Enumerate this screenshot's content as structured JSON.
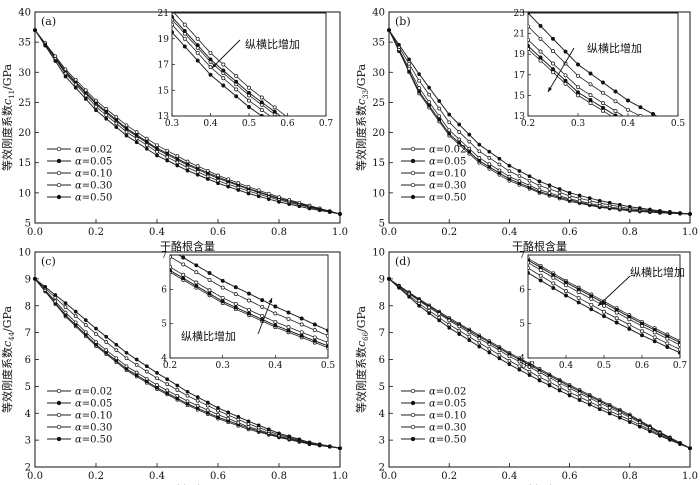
{
  "chart_data": [
    {
      "type": "line",
      "panel_label": "(a)",
      "xlabel": "干酪根含量",
      "ylabel": "等效刚度系数c11/GPa",
      "ylabel_main": "等效刚度系数",
      "ylabel_sym": "c",
      "ylabel_sub": "11",
      "ylabel_unit": "/GPa",
      "xlim": [
        0,
        1
      ],
      "ylim": [
        5,
        40
      ],
      "xticks": [
        "0.0",
        "0.2",
        "0.4",
        "0.6",
        "0.8",
        "1.0"
      ],
      "yticks": [
        "5",
        "10",
        "15",
        "20",
        "25",
        "30",
        "35",
        "40"
      ],
      "x": [
        0,
        0.1,
        0.2,
        0.3,
        0.4,
        0.5,
        0.6,
        0.7,
        0.8,
        0.9,
        1.0
      ],
      "series": [
        {
          "name": "0.02",
          "marker": "open",
          "values": [
            37,
            30.0,
            24.7,
            20.5,
            17.2,
            14.6,
            12.4,
            10.6,
            9.0,
            7.7,
            6.5
          ]
        },
        {
          "name": "0.05",
          "marker": "filled",
          "values": [
            37,
            30.2,
            24.9,
            20.7,
            17.4,
            14.8,
            12.6,
            10.7,
            9.1,
            7.8,
            6.5
          ]
        },
        {
          "name": "0.10",
          "marker": "open",
          "values": [
            37,
            30.5,
            25.3,
            21.2,
            17.9,
            15.2,
            12.9,
            11.0,
            9.3,
            7.9,
            6.5
          ]
        },
        {
          "name": "0.30",
          "marker": "open",
          "values": [
            37,
            29.8,
            24.3,
            20.1,
            16.8,
            14.2,
            12.0,
            10.3,
            8.8,
            7.6,
            6.5
          ]
        },
        {
          "name": "0.50",
          "marker": "filled",
          "values": [
            37,
            29.3,
            23.7,
            19.5,
            16.2,
            13.7,
            11.6,
            9.9,
            8.5,
            7.4,
            6.5
          ]
        }
      ],
      "legend_prefix": "α=",
      "inset": {
        "xlim": [
          0.3,
          0.7
        ],
        "ylim": [
          13,
          21
        ],
        "xticks": [
          "0.3",
          "0.4",
          "0.5",
          "0.6",
          "0.7"
        ],
        "yticks": [
          "13",
          "15",
          "17",
          "19",
          "21"
        ],
        "annotation": "纵横比增加"
      }
    },
    {
      "type": "line",
      "panel_label": "(b)",
      "xlabel": "干酪根含量",
      "ylabel": "等效刚度系数c33/GPa",
      "ylabel_main": "等效刚度系数",
      "ylabel_sym": "c",
      "ylabel_sub": "33",
      "ylabel_unit": "/GPa",
      "xlim": [
        0,
        1
      ],
      "ylim": [
        5,
        40
      ],
      "xticks": [
        "0.0",
        "0.2",
        "0.4",
        "0.6",
        "0.8",
        "1.0"
      ],
      "yticks": [
        "5",
        "10",
        "15",
        "20",
        "25",
        "30",
        "35",
        "40"
      ],
      "x": [
        0,
        0.1,
        0.2,
        0.3,
        0.4,
        0.5,
        0.6,
        0.7,
        0.8,
        0.9,
        1.0
      ],
      "series": [
        {
          "name": "0.02",
          "marker": "open",
          "values": [
            37,
            26.5,
            19.5,
            15.0,
            12.0,
            10.0,
            8.6,
            7.6,
            7.0,
            6.7,
            6.5
          ]
        },
        {
          "name": "0.05",
          "marker": "filled",
          "values": [
            37,
            26.8,
            19.8,
            15.3,
            12.3,
            10.2,
            8.8,
            7.7,
            7.1,
            6.7,
            6.5
          ]
        },
        {
          "name": "0.10",
          "marker": "open",
          "values": [
            37,
            27.4,
            20.4,
            15.8,
            12.7,
            10.5,
            9.0,
            7.9,
            7.2,
            6.8,
            6.5
          ]
        },
        {
          "name": "0.30",
          "marker": "open",
          "values": [
            37,
            28.6,
            21.7,
            16.9,
            13.6,
            11.2,
            9.5,
            8.3,
            7.4,
            6.9,
            6.5
          ]
        },
        {
          "name": "0.50",
          "marker": "filled",
          "values": [
            37,
            29.7,
            23.0,
            18.0,
            14.5,
            11.9,
            10.0,
            8.7,
            7.7,
            7.0,
            6.5
          ]
        }
      ],
      "legend_prefix": "α=",
      "inset": {
        "xlim": [
          0.2,
          0.5
        ],
        "ylim": [
          13,
          23
        ],
        "xticks": [
          "0.2",
          "0.3",
          "0.4",
          "0.5"
        ],
        "yticks": [
          "13",
          "15",
          "17",
          "19",
          "21",
          "23"
        ],
        "annotation": "纵横比增加"
      }
    },
    {
      "type": "line",
      "panel_label": "(c)",
      "xlabel": "干酪根含量",
      "ylabel": "等效刚度系数c44/GPa",
      "ylabel_main": "等效刚度系数",
      "ylabel_sym": "c",
      "ylabel_sub": "44",
      "ylabel_unit": "/GPa",
      "xlim": [
        0,
        1
      ],
      "ylim": [
        2,
        10
      ],
      "xticks": [
        "0.0",
        "0.2",
        "0.4",
        "0.6",
        "0.8",
        "1.0"
      ],
      "yticks": [
        "2",
        "3",
        "4",
        "5",
        "6",
        "7",
        "8",
        "9",
        "10"
      ],
      "x": [
        0,
        0.1,
        0.2,
        0.3,
        0.4,
        0.5,
        0.6,
        0.7,
        0.8,
        0.9,
        1.0
      ],
      "series": [
        {
          "name": "0.02",
          "marker": "open",
          "values": [
            9.0,
            7.6,
            6.5,
            5.6,
            4.9,
            4.3,
            3.8,
            3.4,
            3.1,
            2.85,
            2.7
          ]
        },
        {
          "name": "0.05",
          "marker": "filled",
          "values": [
            9.0,
            7.65,
            6.55,
            5.65,
            4.95,
            4.35,
            3.85,
            3.45,
            3.12,
            2.87,
            2.7
          ]
        },
        {
          "name": "0.10",
          "marker": "open",
          "values": [
            9.0,
            7.75,
            6.65,
            5.75,
            5.05,
            4.45,
            3.95,
            3.5,
            3.15,
            2.88,
            2.7
          ]
        },
        {
          "name": "0.30",
          "marker": "open",
          "values": [
            9.0,
            7.95,
            6.95,
            6.05,
            5.3,
            4.65,
            4.1,
            3.6,
            3.2,
            2.9,
            2.7
          ]
        },
        {
          "name": "0.50",
          "marker": "filled",
          "values": [
            9.0,
            8.1,
            7.15,
            6.25,
            5.5,
            4.8,
            4.2,
            3.7,
            3.25,
            2.92,
            2.7
          ]
        }
      ],
      "legend_prefix": "α=",
      "inset": {
        "xlim": [
          0.2,
          0.5
        ],
        "ylim": [
          4,
          7
        ],
        "xticks": [
          "0.2",
          "0.3",
          "0.4",
          "0.5"
        ],
        "yticks": [
          "4",
          "5",
          "6",
          "7"
        ],
        "annotation": "纵横比增加"
      }
    },
    {
      "type": "line",
      "panel_label": "(d)",
      "xlabel": "干酪根含量",
      "ylabel": "等效刚度系数c66/GPa",
      "ylabel_main": "等效刚度系数",
      "ylabel_sym": "c",
      "ylabel_sub": "66",
      "ylabel_unit": "/GPa",
      "xlim": [
        0,
        1
      ],
      "ylim": [
        2,
        10
      ],
      "xticks": [
        "0.0",
        "0.2",
        "0.4",
        "0.6",
        "0.8",
        "1.0"
      ],
      "yticks": [
        "2",
        "3",
        "4",
        "5",
        "6",
        "7",
        "8",
        "9",
        "10"
      ],
      "x": [
        0,
        0.1,
        0.2,
        0.3,
        0.4,
        0.5,
        0.6,
        0.7,
        0.8,
        0.9,
        1.0
      ],
      "series": [
        {
          "name": "0.02",
          "marker": "open",
          "values": [
            9.0,
            8.25,
            7.55,
            6.9,
            6.25,
            5.65,
            5.05,
            4.5,
            3.95,
            3.3,
            2.7
          ]
        },
        {
          "name": "0.05",
          "marker": "filled",
          "values": [
            9.0,
            8.22,
            7.5,
            6.85,
            6.2,
            5.6,
            5.0,
            4.45,
            3.9,
            3.28,
            2.7
          ]
        },
        {
          "name": "0.10",
          "marker": "open",
          "values": [
            9.0,
            8.18,
            7.45,
            6.78,
            6.12,
            5.52,
            4.93,
            4.38,
            3.85,
            3.25,
            2.7
          ]
        },
        {
          "name": "0.30",
          "marker": "open",
          "values": [
            9.0,
            8.08,
            7.3,
            6.62,
            5.95,
            5.35,
            4.78,
            4.25,
            3.75,
            3.2,
            2.7
          ]
        },
        {
          "name": "0.50",
          "marker": "filled",
          "values": [
            9.0,
            8.0,
            7.18,
            6.48,
            5.82,
            5.22,
            4.66,
            4.15,
            3.67,
            3.16,
            2.7
          ]
        }
      ],
      "legend_prefix": "α=",
      "inset": {
        "xlim": [
          0.3,
          0.7
        ],
        "ylim": [
          4,
          7
        ],
        "xticks": [
          "0.3",
          "0.4",
          "0.5",
          "0.6",
          "0.7"
        ],
        "yticks": [
          "4",
          "5",
          "6",
          "7"
        ],
        "annotation": "纵横比增加"
      }
    }
  ]
}
